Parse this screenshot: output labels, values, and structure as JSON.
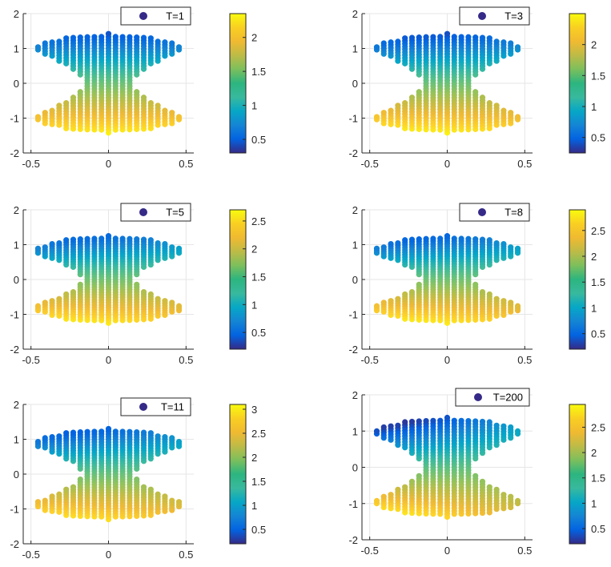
{
  "chart_data": [
    {
      "type": "scatter",
      "title": "",
      "xlabel": "",
      "ylabel": "",
      "xlim": [
        -0.55,
        0.55
      ],
      "ylim": [
        -2,
        2
      ],
      "xticks": [
        "-0.5",
        "0",
        "0.5"
      ],
      "yticks": [
        "-2",
        "-1",
        "0",
        "1",
        "2"
      ],
      "legend": {
        "label": "T=1",
        "placement": "top-right"
      },
      "colorbar": {
        "min": 0.3,
        "max": 2.35,
        "ticks": [
          "0.5",
          "1",
          "1.5",
          "2"
        ],
        "colormap": "parula"
      },
      "shape": {
        "half_width": 0.5,
        "lobe_center": 1.0,
        "lobe_half_height": 0.42,
        "neck_half_height": 0.15,
        "rings": 22
      },
      "color_model": {
        "low": 0.45,
        "high": 2.3,
        "skew": 0.0
      },
      "grid": true
    },
    {
      "type": "scatter",
      "title": "",
      "xlabel": "",
      "ylabel": "",
      "xlim": [
        -0.55,
        0.55
      ],
      "ylim": [
        -2,
        2
      ],
      "xticks": [
        "-0.5",
        "0",
        "0.5"
      ],
      "yticks": [
        "-2",
        "-1",
        "0",
        "1",
        "2"
      ],
      "legend": {
        "label": "T=3",
        "placement": "top-right"
      },
      "colorbar": {
        "min": 0.25,
        "max": 2.5,
        "ticks": [
          "0.5",
          "1",
          "1.5",
          "2"
        ],
        "colormap": "parula"
      },
      "shape": {
        "half_width": 0.5,
        "lobe_center": 1.0,
        "lobe_half_height": 0.42,
        "neck_half_height": 0.15,
        "rings": 22
      },
      "color_model": {
        "low": 0.4,
        "high": 2.45,
        "skew": 0.15
      },
      "grid": true
    },
    {
      "type": "scatter",
      "title": "",
      "xlabel": "",
      "ylabel": "",
      "xlim": [
        -0.55,
        0.55
      ],
      "ylim": [
        -2,
        2
      ],
      "xticks": [
        "-0.5",
        "0",
        "0.5"
      ],
      "yticks": [
        "-2",
        "-1",
        "0",
        "1",
        "2"
      ],
      "legend": {
        "label": "T=5",
        "placement": "top-right"
      },
      "colorbar": {
        "min": 0.2,
        "max": 2.7,
        "ticks": [
          "0.5",
          "1",
          "1.5",
          "2",
          "2.5"
        ],
        "colormap": "parula"
      },
      "shape": {
        "half_width": 0.5,
        "lobe_center": 0.8,
        "lobe_half_height": 0.45,
        "neck_half_height": 0.18,
        "rings": 22
      },
      "color_model": {
        "low": 0.5,
        "high": 2.6,
        "skew": 0.25
      },
      "grid": true
    },
    {
      "type": "scatter",
      "title": "",
      "xlabel": "",
      "ylabel": "",
      "xlim": [
        -0.55,
        0.55
      ],
      "ylim": [
        -2,
        2
      ],
      "xticks": [
        "-0.5",
        "0",
        "0.5"
      ],
      "yticks": [
        "-2",
        "-1",
        "0",
        "1",
        "2"
      ],
      "legend": {
        "label": "T=8",
        "placement": "top-right"
      },
      "colorbar": {
        "min": 0.2,
        "max": 2.9,
        "ticks": [
          "0.5",
          "1",
          "1.5",
          "2",
          "2.5"
        ],
        "colormap": "parula"
      },
      "shape": {
        "half_width": 0.5,
        "lobe_center": 0.8,
        "lobe_half_height": 0.45,
        "neck_half_height": 0.18,
        "rings": 22
      },
      "color_model": {
        "low": 0.5,
        "high": 2.8,
        "skew": 0.3
      },
      "grid": true
    },
    {
      "type": "scatter",
      "title": "",
      "xlabel": "",
      "ylabel": "",
      "xlim": [
        -0.55,
        0.55
      ],
      "ylim": [
        -2,
        2
      ],
      "xticks": [
        "-0.5",
        "0",
        "0.5"
      ],
      "yticks": [
        "-2",
        "-1",
        "0",
        "1",
        "2"
      ],
      "legend": {
        "label": "T=11",
        "placement": "top-right"
      },
      "colorbar": {
        "min": 0.2,
        "max": 3.1,
        "ticks": [
          "0.5",
          "1",
          "1.5",
          "2",
          "2.5",
          "3"
        ],
        "colormap": "parula"
      },
      "shape": {
        "half_width": 0.5,
        "lobe_center": 0.85,
        "lobe_half_height": 0.45,
        "neck_half_height": 0.18,
        "rings": 22
      },
      "color_model": {
        "low": 0.5,
        "high": 2.9,
        "skew": 0.35
      },
      "grid": true
    },
    {
      "type": "scatter",
      "title": "",
      "xlabel": "",
      "ylabel": "",
      "xlim": [
        -0.55,
        0.55
      ],
      "ylim": [
        -2,
        2
      ],
      "xticks": [
        "-0.5",
        "0",
        "0.5"
      ],
      "yticks": [
        "-2",
        "-1",
        "0",
        "1",
        "2"
      ],
      "legend": {
        "label": "T=200",
        "placement": "top-right"
      },
      "colorbar": {
        "min": 0.2,
        "max": 2.95,
        "ticks": [
          "0.5",
          "1",
          "1.5",
          "2",
          "2.5"
        ],
        "colormap": "parula"
      },
      "shape": {
        "half_width": 0.5,
        "lobe_center": 0.95,
        "lobe_half_height": 0.42,
        "neck_half_height": 0.18,
        "rings": 22
      },
      "color_model": {
        "low": 0.4,
        "high": 2.7,
        "skew": 0.7
      },
      "grid": true
    }
  ]
}
